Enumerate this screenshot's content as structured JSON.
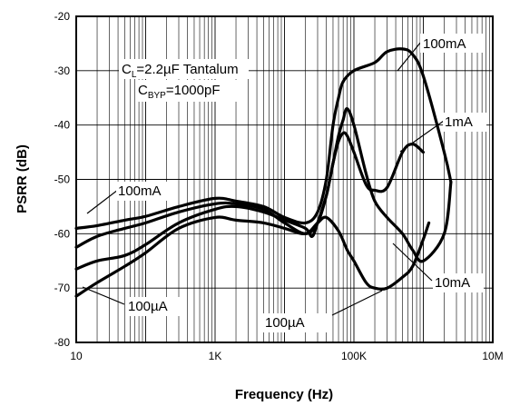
{
  "chart_data": {
    "type": "line",
    "title": "",
    "xlabel": "Frequency (Hz)",
    "ylabel": "PSRR (dB)",
    "x_scale": "log",
    "xlim": [
      10,
      10000000
    ],
    "ylim": [
      -80,
      -20
    ],
    "x_ticks": [
      10,
      1000,
      100000,
      10000000
    ],
    "x_tick_labels": [
      "10",
      "1K",
      "100K",
      "10M"
    ],
    "y_ticks": [
      -80,
      -70,
      -60,
      -50,
      -40,
      -30,
      -20
    ],
    "y_tick_labels": [
      "-80",
      "-70",
      "-60",
      "-50",
      "-40",
      "-30",
      "-20"
    ],
    "grid": true,
    "annotations": {
      "cl_text": "C",
      "cl_sub": "L",
      "cl_rest": "=2.2µF Tantalum",
      "cbyp_text": "C",
      "cbyp_sub": "BYP",
      "cbyp_rest": "=1000pF"
    },
    "series": [
      {
        "name": "100mA",
        "x": [
          10,
          20,
          50,
          100,
          300,
          1000,
          2000,
          5000,
          10000,
          20000,
          30000,
          40000,
          50000,
          60000,
          70000,
          100000,
          200000,
          300000,
          500000,
          700000,
          1000000,
          2000000,
          2500000
        ],
        "y": [
          -59,
          -58.5,
          -57.5,
          -56.8,
          -55,
          -53.5,
          -54,
          -55,
          -57,
          -58,
          -56,
          -50,
          -40,
          -35,
          -32,
          -30,
          -28.5,
          -26.5,
          -26,
          -27,
          -31,
          -45,
          -50.5
        ]
      },
      {
        "name": "1mA",
        "x": [
          10,
          20,
          50,
          100,
          300,
          1000,
          2000,
          5000,
          10000,
          20000,
          30000,
          40000,
          50000,
          60000,
          70000,
          80000,
          100000,
          150000,
          200000,
          300000,
          500000,
          700000,
          1000000
        ],
        "y": [
          -62.5,
          -60.5,
          -59,
          -58,
          -56,
          -54.5,
          -54.5,
          -55.5,
          -58,
          -60,
          -58,
          -53,
          -47,
          -43,
          -41.5,
          -42,
          -45,
          -51,
          -52,
          -51.5,
          -45,
          -43.5,
          -45
        ]
      },
      {
        "name": "10mA",
        "x": [
          10,
          20,
          50,
          100,
          300,
          1000,
          2000,
          5000,
          10000,
          20000,
          25000,
          30000,
          40000,
          45000,
          50000,
          60000,
          70000,
          80000,
          100000,
          150000,
          200000,
          300000,
          500000,
          700000,
          1000000,
          2000000,
          2500000
        ],
        "y": [
          -66.5,
          -65,
          -64,
          -62,
          -58,
          -55.5,
          -55,
          -56,
          -57.5,
          -59,
          -60.5,
          -58,
          -53,
          -50,
          -47,
          -42,
          -39,
          -37,
          -40,
          -49,
          -54,
          -57,
          -60,
          -63,
          -65,
          -60,
          -50.5
        ]
      },
      {
        "name": "100µA",
        "x": [
          10,
          20,
          50,
          100,
          300,
          1000,
          2000,
          5000,
          10000,
          20000,
          30000,
          40000,
          60000,
          80000,
          100000,
          150000,
          200000,
          300000,
          500000,
          700000,
          1000000,
          1200000
        ],
        "y": [
          -71.5,
          -69,
          -66,
          -63.5,
          -59,
          -57,
          -57.5,
          -58,
          -59,
          -60,
          -58,
          -57,
          -59.5,
          -63,
          -65,
          -69,
          -70,
          -70,
          -68,
          -66,
          -61,
          -58
        ]
      }
    ],
    "labels": [
      "100mA",
      "100mA",
      "1mA",
      "10mA",
      "100µA",
      "100µA"
    ]
  }
}
